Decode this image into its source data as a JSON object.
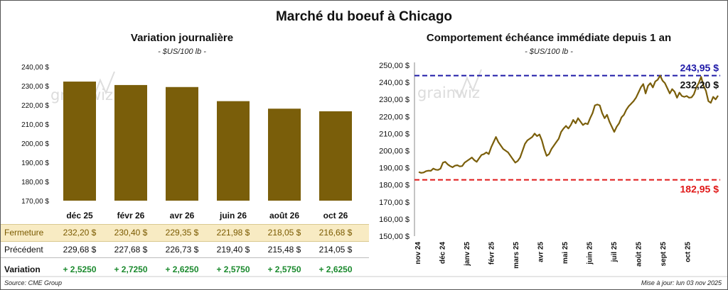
{
  "page_title": "Marché du boeuf à Chicago",
  "left_title": "Variation journalière",
  "left_subtitle": "- $US/100 lb -",
  "right_title": "Comportement échéance immédiate depuis 1 an",
  "right_subtitle": "- $US/100 lb -",
  "watermark": "grainwiz",
  "source": "Source: CME Group",
  "updated": "Mise à jour: lun 03 nov 2025",
  "table": {
    "close_label": "Fermeture",
    "prev_label": "Précédent",
    "var_label": "Variation",
    "close": [
      "232,20  $",
      "230,40  $",
      "229,35  $",
      "221,98  $",
      "218,05  $",
      "216,68  $"
    ],
    "prev": [
      "229,68  $",
      "227,68  $",
      "226,73  $",
      "219,40  $",
      "215,48  $",
      "214,05  $"
    ],
    "var": [
      "+ 2,5250",
      "+ 2,7250",
      "+ 2,6250",
      "+ 2,5750",
      "+ 2,5750",
      "+ 2,6250"
    ]
  },
  "colors": {
    "bar": "#7a5e0a",
    "line": "#7a5e0a",
    "max_line": "#1f1aa8",
    "min_line": "#e01818",
    "variation": "#1b8a2e"
  },
  "chart_data": [
    {
      "type": "bar",
      "categories": [
        "déc 25",
        "févr 26",
        "avr 26",
        "juin 26",
        "août 26",
        "oct 26"
      ],
      "values": [
        232.2,
        230.4,
        229.35,
        221.98,
        218.05,
        216.68
      ],
      "ylim": [
        170,
        240
      ],
      "yticks": [
        "170,00 $",
        "180,00 $",
        "190,00 $",
        "200,00 $",
        "210,00 $",
        "220,00 $",
        "230,00 $",
        "240,00 $"
      ],
      "grid": false
    },
    {
      "type": "line",
      "x_labels": [
        "nov 24",
        "déc 24",
        "janv 25",
        "févr 25",
        "mars 25",
        "avr 25",
        "mai 25",
        "juin 25",
        "juil 25",
        "août 25",
        "sept 25",
        "oct 25"
      ],
      "ylim": [
        150,
        250
      ],
      "yticks": [
        "150,00 $",
        "160,00 $",
        "170,00 $",
        "180,00 $",
        "190,00 $",
        "200,00 $",
        "210,00 $",
        "220,00 $",
        "230,00 $",
        "240,00 $",
        "250,00 $"
      ],
      "max_value": 243.95,
      "max_label": "243,95 $",
      "min_value": 182.95,
      "min_label": "182,95 $",
      "last_label": "232,20 $",
      "series": [
        {
          "values": [
            187.5,
            187.0,
            187.2,
            188.0,
            188.3,
            188.2,
            189.5,
            188.9,
            188.7,
            189.5,
            193.0,
            193.5,
            192.0,
            191.0,
            190.3,
            191.2,
            191.5,
            190.8,
            191.0,
            193.0,
            194.0,
            195.0,
            196.0,
            194.5,
            193.5,
            195.5,
            197.5,
            198.0,
            199.0,
            198.0,
            202.0,
            205.0,
            208.0,
            205.0,
            203.0,
            201.0,
            200.0,
            199.0,
            197.0,
            195.0,
            193.0,
            194.0,
            196.0,
            200.0,
            204.0,
            206.0,
            207.0,
            208.0,
            210.0,
            208.5,
            209.5,
            206.0,
            201.0,
            197.0,
            198.0,
            201.0,
            203.0,
            205.0,
            207.0,
            211.0,
            213.0,
            214.5,
            213.0,
            215.0,
            218.0,
            216.0,
            219.0,
            217.0,
            215.0,
            216.0,
            215.5,
            219.0,
            222.0,
            226.5,
            227.0,
            226.5,
            222.0,
            219.0,
            221.0,
            217.0,
            214.0,
            211.0,
            214.0,
            216.0,
            219.5,
            221.0,
            224.0,
            226.0,
            227.5,
            229.0,
            231.0,
            234.0,
            237.0,
            239.0,
            233.5,
            238.0,
            239.5,
            237.0,
            240.5,
            241.5,
            243.95,
            241.0,
            239.5,
            236.5,
            233.5,
            236.0,
            234.5,
            231.0,
            234.0,
            232.0,
            231.5,
            232.0,
            231.0,
            231.2,
            233.0,
            237.0,
            239.5,
            243.2,
            238.0,
            235.0,
            229.0,
            228.0,
            231.5,
            230.0,
            232.2
          ]
        }
      ]
    }
  ]
}
